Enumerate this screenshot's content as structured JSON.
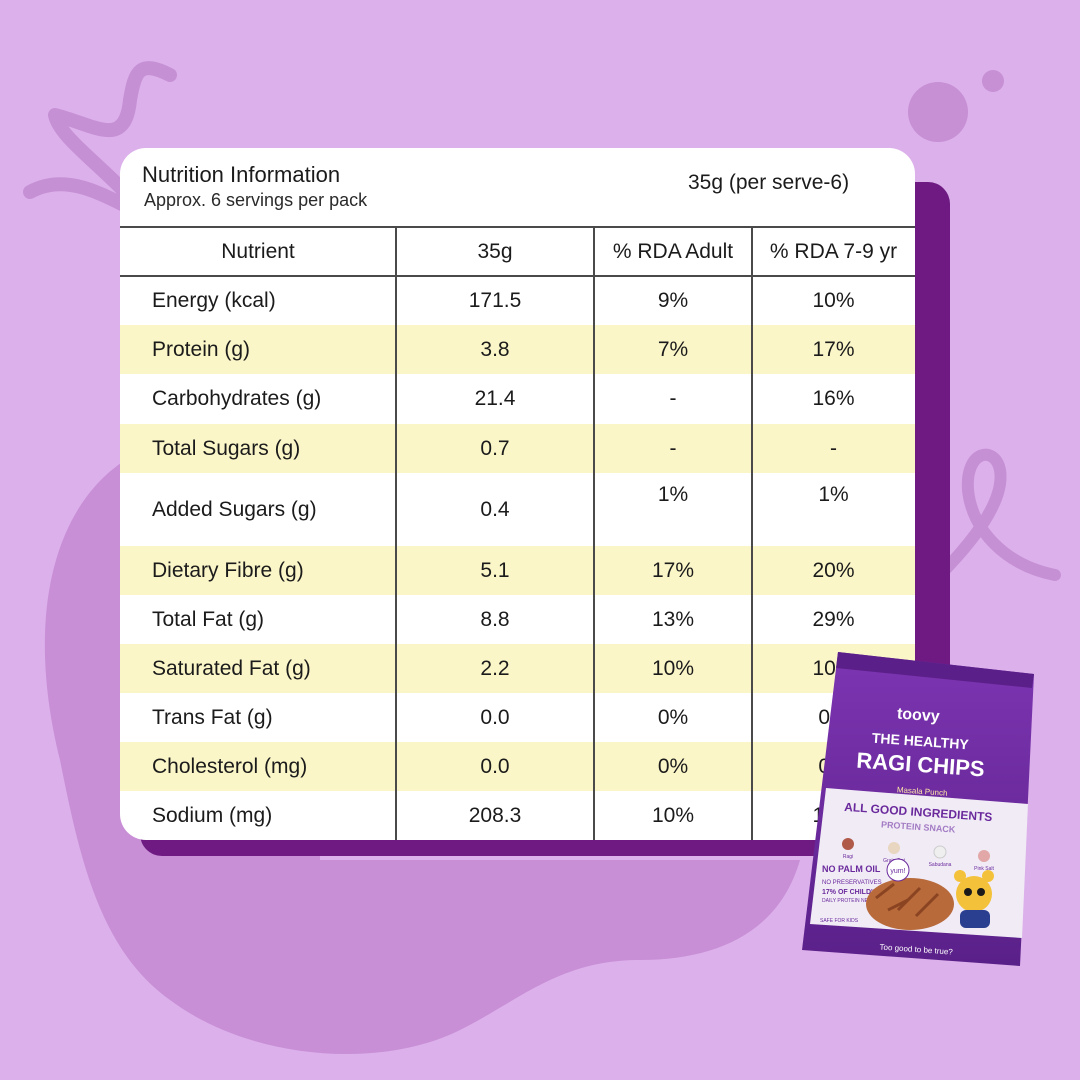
{
  "colors": {
    "background": "#dcb0ea",
    "blob": "#c88fd6",
    "card_shadow": "#6e1a82",
    "row_highlight": "#fbf6c8",
    "pack_purple": "#6a2a9c"
  },
  "header": {
    "title": "Nutrition Information",
    "subtitle": "Approx. 6 servings per pack",
    "serving": "35g (per serve-6)"
  },
  "table": {
    "columns": [
      "Nutrient",
      "35g",
      "% RDA Adult",
      "% RDA 7-9 yr"
    ],
    "rows": [
      {
        "nutrient": "Energy (kcal)",
        "amount": "171.5",
        "rda_adult": "9%",
        "rda_kid": "10%"
      },
      {
        "nutrient": "Protein (g)",
        "amount": "3.8",
        "rda_adult": "7%",
        "rda_kid": "17%"
      },
      {
        "nutrient": "Carbohydrates (g)",
        "amount": "21.4",
        "rda_adult": "-",
        "rda_kid": "16%"
      },
      {
        "nutrient": "Total Sugars (g)",
        "amount": "0.7",
        "rda_adult": "-",
        "rda_kid": "-"
      },
      {
        "nutrient": "Added Sugars (g)",
        "amount": "0.4",
        "rda_adult": "1%",
        "rda_kid": "1%"
      },
      {
        "nutrient": "Dietary Fibre (g)",
        "amount": "5.1",
        "rda_adult": "17%",
        "rda_kid": "20%"
      },
      {
        "nutrient": "Total Fat (g)",
        "amount": "8.8",
        "rda_adult": "13%",
        "rda_kid": "29%"
      },
      {
        "nutrient": "Saturated Fat (g)",
        "amount": "2.2",
        "rda_adult": "10%",
        "rda_kid": "10%"
      },
      {
        "nutrient": "Trans Fat (g)",
        "amount": "0.0",
        "rda_adult": "0%",
        "rda_kid": "0%"
      },
      {
        "nutrient": "Cholesterol (mg)",
        "amount": "0.0",
        "rda_adult": "0%",
        "rda_kid": "0%"
      },
      {
        "nutrient": "Sodium (mg)",
        "amount": "208.3",
        "rda_adult": "10%",
        "rda_kid": "10%"
      }
    ]
  },
  "pack": {
    "brand": "toovy",
    "line1": "THE HEALTHY",
    "line2": "RAGI CHIPS",
    "flavour": "Masala Punch",
    "tagline": "ALL GOOD INGREDIENTS",
    "category": "PROTEIN SNACK",
    "ingredients": [
      "Ragi",
      "Grain Oat",
      "Sabudana",
      "Pink Salt"
    ],
    "badge_title": "NO PALM OIL",
    "badge_line1": "NO PRESERVATIVES",
    "badge_line2": "17% OF CHILD'S",
    "badge_line3": "DAILY PROTEIN NEED",
    "safe": "SAFE FOR KIDS",
    "bubble": "yum!",
    "footer": "Too good to be true?"
  }
}
